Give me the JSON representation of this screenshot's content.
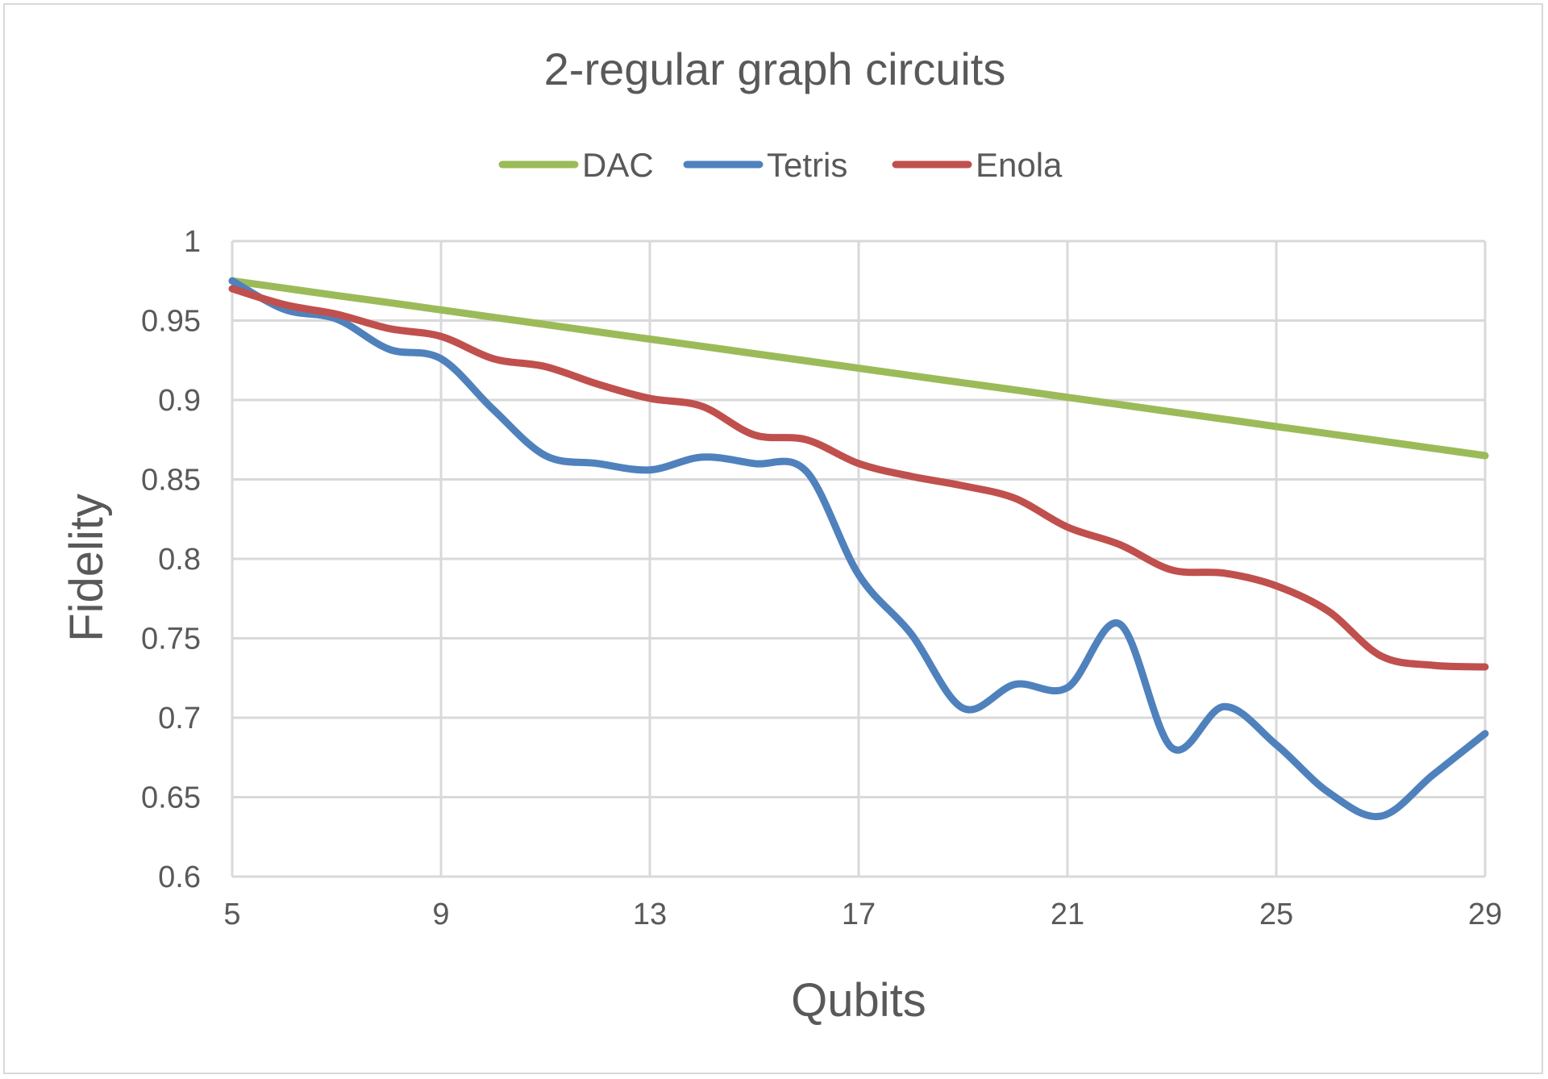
{
  "chart_data": {
    "type": "line",
    "title": "2-regular graph circuits",
    "xlabel": "Qubits",
    "ylabel": "Fidelity",
    "xlim": [
      5,
      29
    ],
    "ylim": [
      0.6,
      1
    ],
    "x_ticks": [
      "5",
      "9",
      "13",
      "17",
      "21",
      "25",
      "29"
    ],
    "y_ticks": [
      "0.6",
      "0.65",
      "0.7",
      "0.75",
      "0.8",
      "0.85",
      "0.9",
      "0.95",
      "1"
    ],
    "grid": true,
    "legend_position": "top",
    "x": [
      5,
      6,
      7,
      8,
      9,
      10,
      11,
      12,
      13,
      14,
      15,
      16,
      17,
      18,
      19,
      20,
      21,
      22,
      23,
      24,
      25,
      26,
      27,
      28,
      29
    ],
    "series": [
      {
        "name": "DAC",
        "color": "#9bbb59",
        "values": [
          0.975,
          0.9704,
          0.9658,
          0.9613,
          0.9567,
          0.9521,
          0.9475,
          0.9429,
          0.9383,
          0.9338,
          0.9292,
          0.9246,
          0.92,
          0.9154,
          0.9108,
          0.9063,
          0.9017,
          0.8971,
          0.8925,
          0.8879,
          0.8833,
          0.8788,
          0.8742,
          0.8696,
          0.865
        ]
      },
      {
        "name": "Tetris",
        "color": "#4f81bd",
        "values": [
          0.975,
          0.957,
          0.951,
          0.932,
          0.926,
          0.894,
          0.865,
          0.86,
          0.856,
          0.864,
          0.86,
          0.855,
          0.79,
          0.753,
          0.706,
          0.721,
          0.719,
          0.759,
          0.681,
          0.707,
          0.683,
          0.653,
          0.638,
          0.664,
          0.69
        ]
      },
      {
        "name": "Enola",
        "color": "#c0504d",
        "values": [
          0.97,
          0.96,
          0.954,
          0.945,
          0.94,
          0.926,
          0.921,
          0.91,
          0.901,
          0.896,
          0.878,
          0.875,
          0.86,
          0.852,
          0.846,
          0.838,
          0.82,
          0.809,
          0.793,
          0.791,
          0.783,
          0.767,
          0.739,
          0.733,
          0.732
        ]
      }
    ]
  }
}
